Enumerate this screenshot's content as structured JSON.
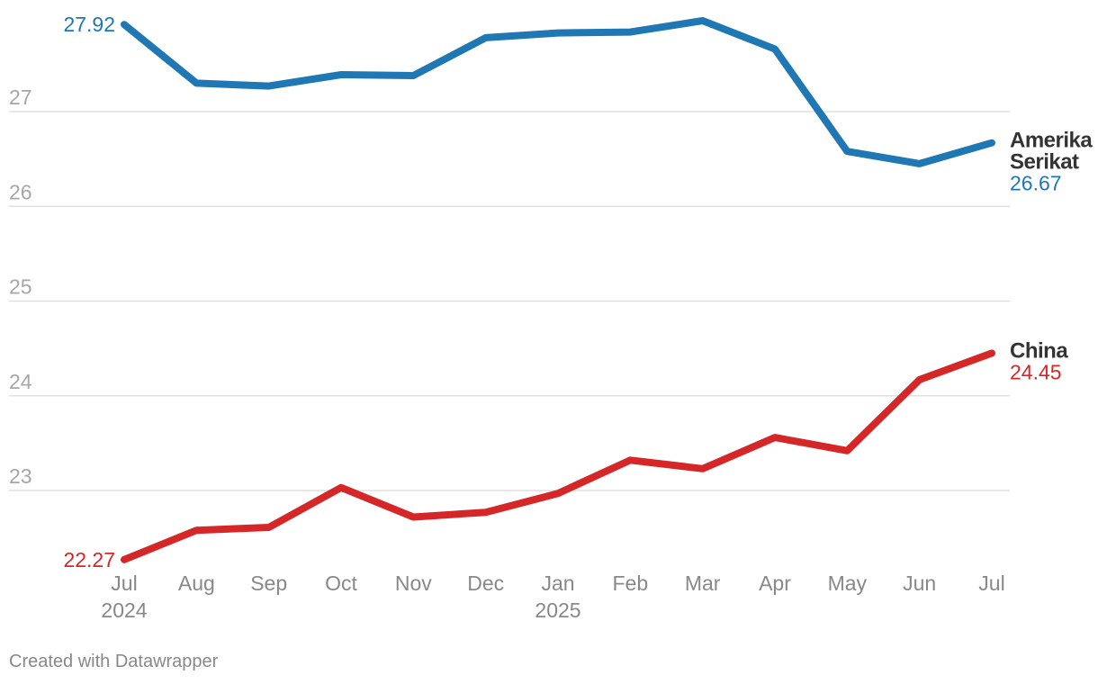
{
  "chart_data": {
    "type": "line",
    "x": [
      "Jul",
      "Aug",
      "Sep",
      "Oct",
      "Nov",
      "Dec",
      "Jan",
      "Feb",
      "Mar",
      "Apr",
      "May",
      "Jun",
      "Jul"
    ],
    "x_year_labels": [
      {
        "index": 0,
        "label": "2024"
      },
      {
        "index": 6,
        "label": "2025"
      }
    ],
    "ylim": [
      22.27,
      27.92
    ],
    "yticks": [
      23,
      24,
      25,
      26,
      27
    ],
    "grid": true,
    "series": [
      {
        "name": "Amerika Serikat",
        "name_lines": [
          "Amerika",
          "Serikat"
        ],
        "color": "#1f77b4",
        "values": [
          27.92,
          27.3,
          27.27,
          27.39,
          27.38,
          27.78,
          27.83,
          27.84,
          27.96,
          27.66,
          26.58,
          26.45,
          26.67
        ],
        "start_label": "27.92",
        "end_label": "26.67"
      },
      {
        "name": "China",
        "name_lines": [
          "China"
        ],
        "color": "#d62728",
        "values": [
          22.27,
          22.58,
          22.61,
          23.03,
          22.72,
          22.77,
          22.97,
          23.32,
          23.23,
          23.56,
          23.42,
          24.17,
          24.45
        ],
        "start_label": "22.27",
        "end_label": "24.45"
      }
    ]
  },
  "footer": {
    "text": "Created with Datawrapper"
  }
}
